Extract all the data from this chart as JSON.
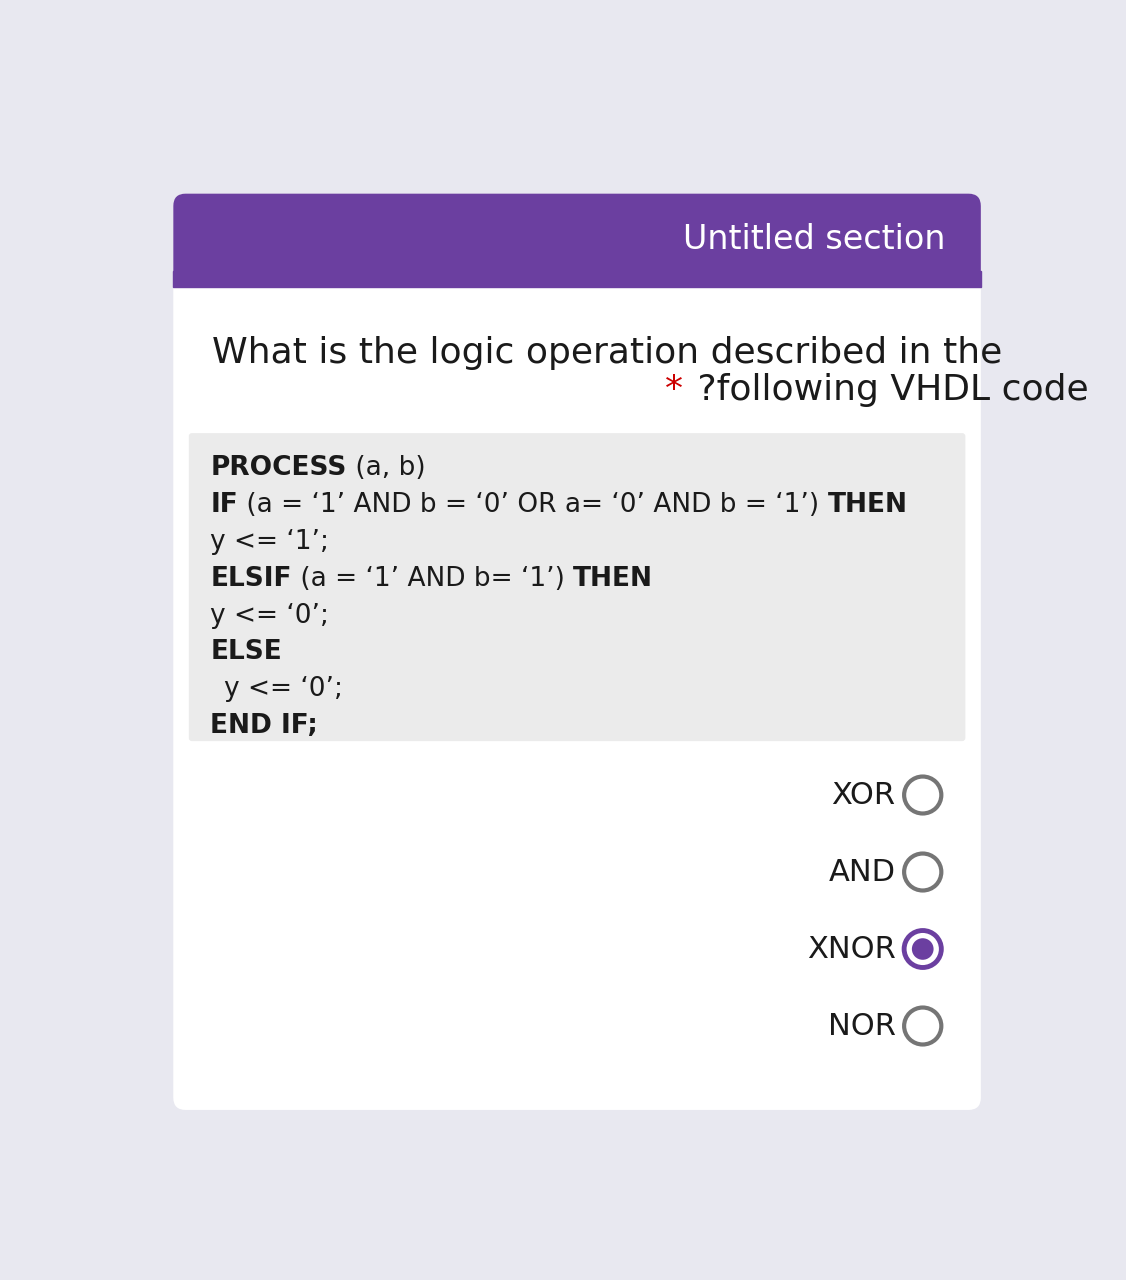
{
  "bg_color": "#e8e8f0",
  "card_color": "#ffffff",
  "header_bg": "#6b3fa0",
  "header_text": "Untitled section",
  "header_text_color": "#ffffff",
  "question_line1": "What is the logic operation described in the",
  "question_line2_star": "*",
  "question_line2_text": " ?following VHDL code",
  "question_color": "#1a1a1a",
  "star_color": "#cc0000",
  "code_bg": "#ebebeb",
  "options": [
    {
      "label": "XOR",
      "selected": false
    },
    {
      "label": "AND",
      "selected": false
    },
    {
      "label": "XNOR",
      "selected": true
    },
    {
      "label": "NOR",
      "selected": false
    }
  ],
  "radio_color_unselected": "#757575",
  "radio_color_selected_outer": "#6b3fa0",
  "radio_color_selected_inner": "#6b3fa0",
  "option_text_color": "#1a1a1a",
  "option_font_size": 22,
  "header_font_size": 24,
  "question_font_size": 26,
  "code_font_size": 19
}
